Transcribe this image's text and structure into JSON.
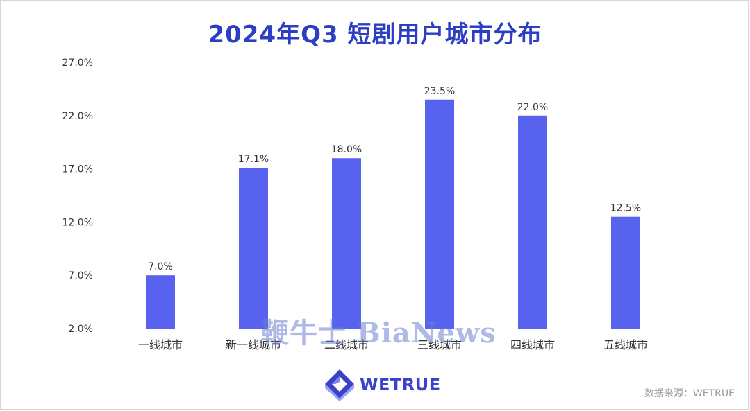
{
  "chart_data": {
    "type": "bar",
    "title": "2024年Q3 短剧用户城市分布",
    "categories": [
      "一线城市",
      "新一线城市",
      "二线城市",
      "三线城市",
      "四线城市",
      "五线城市"
    ],
    "values": [
      7.0,
      17.1,
      18.0,
      23.5,
      22.0,
      12.5
    ],
    "value_labels": [
      "7.0%",
      "17.1%",
      "18.0%",
      "23.5%",
      "22.0%",
      "12.5%"
    ],
    "y_ticks": [
      2.0,
      7.0,
      12.0,
      17.0,
      22.0,
      27.0
    ],
    "y_tick_labels": [
      "2.0%",
      "7.0%",
      "12.0%",
      "17.0%",
      "22.0%",
      "27.0%"
    ],
    "ylim": [
      2.0,
      27.0
    ],
    "grid": false,
    "bar_color": "#5763ee"
  },
  "colors": {
    "title": "#2b3ec4",
    "brand": "#3a43c8"
  },
  "watermark": "鞭牛士 BiaNews",
  "logo": {
    "text": "WETRUE",
    "icon": "wetrue-logo-icon"
  },
  "source": "数据来源：WETRUE"
}
